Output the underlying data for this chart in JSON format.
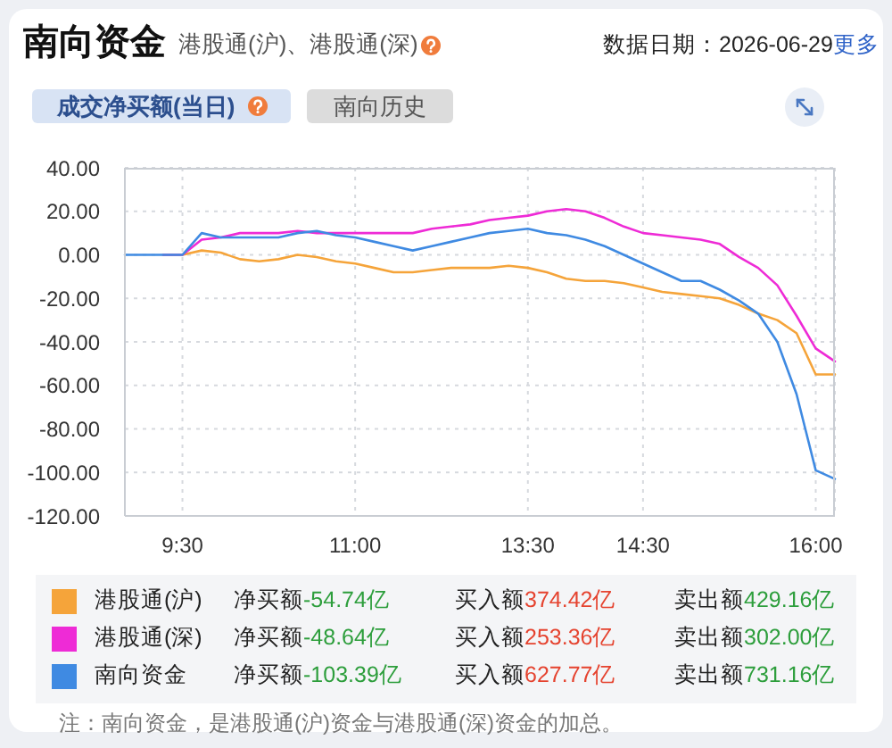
{
  "chart_data": {
    "type": "line",
    "title": "南向资金",
    "subtitle": "港股通(沪)、港股通(深)",
    "categories": [
      null,
      null,
      null,
      "9:30",
      null,
      null,
      null,
      null,
      null,
      null,
      null,
      null,
      "11:00",
      null,
      null,
      null,
      null,
      null,
      null,
      null,
      null,
      "13:30",
      null,
      null,
      null,
      null,
      null,
      "14:30",
      null,
      null,
      null,
      null,
      null,
      null,
      null,
      null,
      "16:00",
      null
    ],
    "ylim": [
      -120,
      40
    ],
    "yticks": [
      {
        "value": 40,
        "label": "40.00"
      },
      {
        "value": 20,
        "label": "20.00"
      },
      {
        "value": 0,
        "label": "0.00"
      },
      {
        "value": -20,
        "label": "-20.00"
      },
      {
        "value": -40,
        "label": "-40.00"
      },
      {
        "value": -60,
        "label": "-60.00"
      },
      {
        "value": -80,
        "label": "-80.00"
      },
      {
        "value": -100,
        "label": "-100.00"
      },
      {
        "value": -120,
        "label": "-120.00"
      }
    ],
    "grid": true,
    "legend": "bottom",
    "line_style": "solid",
    "series": [
      {
        "name": "港股通(沪)",
        "color": "#f5a43a",
        "values": [
          null,
          null,
          0,
          0,
          2,
          1,
          -2,
          -3,
          -2,
          0,
          -1,
          -3,
          -4,
          -6,
          -8,
          -8,
          -7,
          -6,
          -6,
          -6,
          -5,
          -6,
          -8,
          -11,
          -12,
          -12,
          -13,
          -15,
          -17,
          -18,
          -19,
          -20,
          -23,
          -27,
          -30,
          -36,
          -55,
          -55
        ]
      },
      {
        "name": "港股通(深)",
        "color": "#ee2bd6",
        "values": [
          null,
          null,
          0,
          0,
          7,
          8,
          10,
          10,
          10,
          11,
          10,
          10,
          10,
          10,
          10,
          10,
          12,
          13,
          14,
          16,
          17,
          18,
          20,
          21,
          20,
          17,
          13,
          10,
          9,
          8,
          7,
          5,
          -1,
          -6,
          -14,
          -28,
          -43,
          -49
        ]
      },
      {
        "name": "南向资金",
        "color": "#3f8ae2",
        "values": [
          0,
          0,
          0,
          0,
          10,
          8,
          8,
          8,
          8,
          10,
          11,
          9,
          8,
          6,
          4,
          2,
          4,
          6,
          8,
          10,
          11,
          12,
          10,
          9,
          7,
          4,
          0,
          -4,
          -8,
          -12,
          -12,
          -16,
          -21,
          -27,
          -40,
          -64,
          -99,
          -103
        ]
      }
    ],
    "annotations": [
      "数据日期：2026-06-29",
      "更多",
      "成交净买额(当日)",
      "南向历史",
      "净买额-54.74亿",
      "买入额374.42亿",
      "卖出额429.16亿",
      "净买额-48.64亿",
      "买入额253.36亿",
      "卖出额302.00亿",
      "净买额-103.39亿",
      "买入额627.77亿",
      "卖出额731.16亿",
      "注：南向资金，是港股通(沪)资金与港股通(深)资金的加总。"
    ]
  }
}
